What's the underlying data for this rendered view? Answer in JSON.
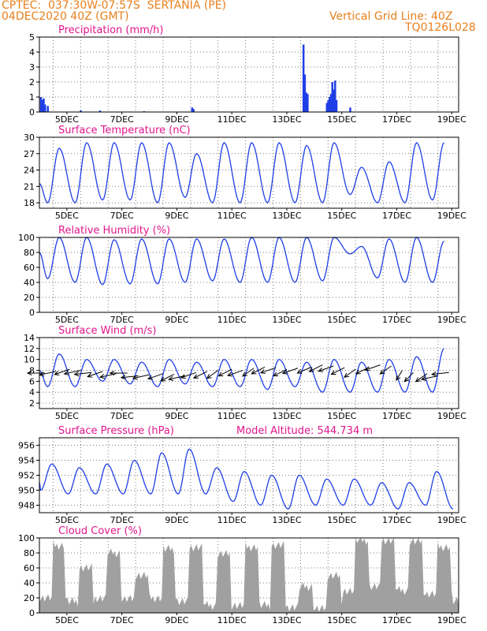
{
  "header": {
    "line1_left": "CPTEC:  037:30W-07:57S  SERTANIA (PE)",
    "line2_left": "04DEC2020 40Z (GMT)",
    "line1_right": "Vertical Grid Line: 40Z",
    "line2_right": "TQ0126L028"
  },
  "colors": {
    "header": "#e8801c",
    "title": "#e0168c",
    "series": "#1f3fe6",
    "cloud": "#a0a0a0"
  },
  "chart_data": [
    {
      "id": "precip",
      "type": "bar",
      "title": "Precipitation (mm/h)",
      "xlabels": [
        "5DEC",
        "7DEC",
        "9DEC",
        "11DEC",
        "13DEC",
        "15DEC",
        "17DEC",
        "19DEC"
      ],
      "ylim": [
        0,
        5
      ],
      "yticks": [
        0,
        1,
        2,
        3,
        4,
        5
      ],
      "x": [
        4.05,
        4.1,
        4.15,
        4.2,
        4.3,
        5.5,
        6.2,
        7.8,
        9.55,
        9.6,
        13.6,
        13.65,
        13.7,
        13.75,
        14.45,
        14.5,
        14.55,
        14.6,
        14.65,
        14.7,
        14.75,
        14.8,
        15.3
      ],
      "values": [
        1.0,
        0.8,
        0.9,
        0.5,
        0.4,
        0.1,
        0.1,
        0.05,
        0.3,
        0.2,
        4.5,
        2.5,
        1.3,
        1.2,
        0.6,
        0.8,
        1.0,
        1.2,
        2.0,
        1.5,
        2.1,
        0.8,
        0.3
      ]
    },
    {
      "id": "temp",
      "type": "line",
      "title": "Surface Temperature (nC)",
      "xlabels": [
        "5DEC",
        "7DEC",
        "9DEC",
        "11DEC",
        "13DEC",
        "15DEC",
        "17DEC",
        "19DEC"
      ],
      "ylim": [
        17,
        30
      ],
      "yticks": [
        18,
        21,
        24,
        27,
        30
      ],
      "days_max": [
        28,
        29,
        29,
        29,
        29,
        27,
        29,
        29,
        29,
        28.5,
        29,
        24.5,
        25.5,
        29,
        29,
        29.5,
        29
      ],
      "days_min": [
        18,
        18,
        18.5,
        18.5,
        18,
        19,
        18,
        18,
        18,
        18,
        18,
        19.5,
        18,
        18,
        18.5,
        18.5,
        18
      ],
      "start_value": 21.5
    },
    {
      "id": "rh",
      "type": "line",
      "title": "Relative Humidity (%)",
      "xlabels": [
        "5DEC",
        "7DEC",
        "9DEC",
        "11DEC",
        "13DEC",
        "15DEC",
        "17DEC",
        "19DEC"
      ],
      "ylim": [
        0,
        100
      ],
      "yticks": [
        0,
        20,
        40,
        60,
        80,
        100
      ],
      "days_max": [
        100,
        100,
        97,
        98,
        98,
        98,
        98,
        100,
        100,
        100,
        100,
        88,
        98,
        100,
        95,
        98,
        100
      ],
      "days_min": [
        45,
        40,
        37,
        38,
        38,
        40,
        42,
        40,
        40,
        40,
        42,
        78,
        46,
        40,
        40,
        42,
        42
      ],
      "start_value": 80
    },
    {
      "id": "wind",
      "type": "line",
      "title": "Surface Wind (m/s)",
      "xlabels": [
        "5DEC",
        "7DEC",
        "9DEC",
        "11DEC",
        "13DEC",
        "15DEC",
        "17DEC",
        "19DEC"
      ],
      "ylim": [
        1,
        14
      ],
      "yticks": [
        2,
        4,
        6,
        8,
        10,
        12,
        14
      ],
      "days_max": [
        11,
        10,
        10,
        9.5,
        10,
        9.5,
        10,
        10,
        10,
        9.5,
        10,
        9.5,
        10,
        10.5,
        12,
        10,
        10
      ],
      "days_min": [
        5,
        5,
        6,
        5.5,
        5,
        5.5,
        5,
        5,
        4.5,
        5,
        4,
        4,
        4,
        4,
        4,
        4,
        5
      ],
      "start_value": 8,
      "arrow_days": [
        4.2,
        4.6,
        5.1,
        5.5,
        5.9,
        6.3,
        6.8,
        7.2,
        7.6,
        8.0,
        8.5,
        8.9,
        9.3,
        9.7,
        10.1,
        10.5,
        11.0,
        11.4,
        11.8,
        12.2,
        12.6,
        13.0,
        13.4,
        13.9,
        14.3,
        14.7,
        15.1,
        15.5,
        16.0,
        16.4,
        16.8,
        17.2,
        17.6,
        18.1,
        18.5,
        18.9
      ],
      "arrow_speed": [
        7.5,
        7.8,
        8.2,
        8.0,
        7.6,
        7.8,
        7.4,
        7.5,
        7.0,
        7.2,
        7.4,
        7.3,
        7.0,
        7.6,
        7.8,
        8.0,
        8.2,
        8.0,
        8.4,
        8.6,
        8.5,
        8.2,
        8.4,
        8.6,
        9.0,
        8.8,
        8.5,
        8.2,
        8.6,
        9.0,
        8.8,
        8.0,
        7.6,
        7.4,
        7.0,
        7.6
      ],
      "arrow_dir": [
        270,
        250,
        240,
        250,
        260,
        240,
        250,
        270,
        260,
        250,
        240,
        230,
        250,
        240,
        230,
        220,
        230,
        240,
        220,
        230,
        240,
        230,
        240,
        235,
        230,
        240,
        230,
        220,
        230,
        240,
        220,
        200,
        210,
        220,
        250,
        260
      ]
    },
    {
      "id": "pres",
      "type": "line",
      "title": "Surface Pressure (hPa)",
      "subtitle": "Model Altitude: 544.734 m",
      "xlabels": [
        "5DEC",
        "7DEC",
        "9DEC",
        "11DEC",
        "13DEC",
        "15DEC",
        "17DEC",
        "19DEC"
      ],
      "ylim": [
        947,
        957
      ],
      "yticks": [
        948,
        950,
        952,
        954,
        956
      ],
      "days_max": [
        953.5,
        953,
        953.5,
        954,
        955,
        955.5,
        953,
        952.5,
        952,
        952,
        951.5,
        951.5,
        951,
        951,
        952.5,
        951,
        950.5
      ],
      "days_min": [
        950,
        949.5,
        949.5,
        949.5,
        949.5,
        949.5,
        949.5,
        948.5,
        948,
        947.5,
        948,
        948,
        948,
        947.5,
        948,
        947.5,
        948
      ],
      "start_value": 951
    },
    {
      "id": "cloud",
      "type": "area",
      "title": "Cloud Cover (%)",
      "xlabels": [
        "5DEC",
        "7DEC",
        "9DEC",
        "11DEC",
        "13DEC",
        "15DEC",
        "17DEC",
        "19DEC"
      ],
      "ylim": [
        0,
        100
      ],
      "yticks": [
        0,
        20,
        40,
        60,
        80,
        100
      ],
      "day_levels": [
        90,
        60,
        80,
        50,
        85,
        88,
        78,
        88,
        90,
        35,
        50,
        97,
        97,
        95,
        88,
        40,
        60,
        95
      ],
      "night_levels": [
        20,
        15,
        20,
        18,
        20,
        15,
        10,
        10,
        10,
        8,
        5,
        30,
        35,
        30,
        25,
        15,
        10,
        20
      ]
    }
  ]
}
